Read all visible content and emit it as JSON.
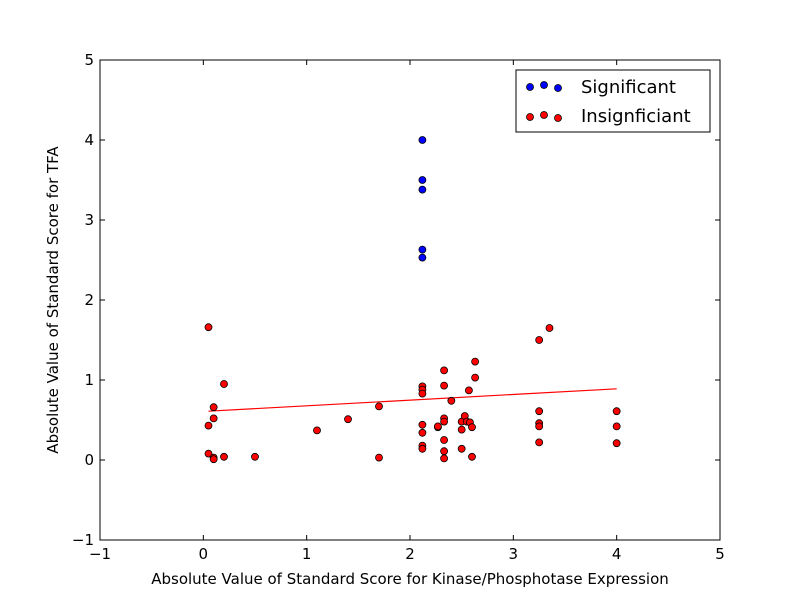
{
  "chart_data": {
    "type": "scatter",
    "title": "",
    "xlabel": "Absolute Value of Standard Score for Kinase/Phosphotase Expression",
    "ylabel": "Absolute Value of Standard Score for TFA",
    "xlim": [
      -1,
      5
    ],
    "ylim": [
      -1,
      5
    ],
    "xticks": [
      -1,
      0,
      1,
      2,
      3,
      4,
      5
    ],
    "yticks": [
      -1,
      0,
      1,
      2,
      3,
      4,
      5
    ],
    "xtick_labels": [
      "−1",
      "0",
      "1",
      "2",
      "3",
      "4",
      "5"
    ],
    "ytick_labels": [
      "−1",
      "0",
      "1",
      "2",
      "3",
      "4",
      "5"
    ],
    "grid": false,
    "legend_position": "top-right",
    "series": [
      {
        "name": "Significant",
        "color": "#0000ff",
        "points": [
          [
            2.12,
            4.0
          ],
          [
            2.12,
            3.5
          ],
          [
            2.12,
            3.38
          ],
          [
            2.12,
            2.63
          ],
          [
            2.12,
            2.53
          ]
        ]
      },
      {
        "name": "Insignficiant",
        "color": "#ff0000",
        "points": [
          [
            0.05,
            1.66
          ],
          [
            0.2,
            0.95
          ],
          [
            0.1,
            0.66
          ],
          [
            0.1,
            0.52
          ],
          [
            0.05,
            0.43
          ],
          [
            0.05,
            0.08
          ],
          [
            0.1,
            0.03
          ],
          [
            0.1,
            0.01
          ],
          [
            0.2,
            0.04
          ],
          [
            0.5,
            0.04
          ],
          [
            1.1,
            0.37
          ],
          [
            1.4,
            0.51
          ],
          [
            1.7,
            0.67
          ],
          [
            1.7,
            0.03
          ],
          [
            2.12,
            0.92
          ],
          [
            2.12,
            0.88
          ],
          [
            2.12,
            0.83
          ],
          [
            2.12,
            0.44
          ],
          [
            2.12,
            0.34
          ],
          [
            2.12,
            0.18
          ],
          [
            2.12,
            0.14
          ],
          [
            2.27,
            0.41
          ],
          [
            2.27,
            0.42
          ],
          [
            2.33,
            1.12
          ],
          [
            2.33,
            0.93
          ],
          [
            2.33,
            0.52
          ],
          [
            2.33,
            0.48
          ],
          [
            2.33,
            0.25
          ],
          [
            2.33,
            0.11
          ],
          [
            2.33,
            0.02
          ],
          [
            2.4,
            0.74
          ],
          [
            2.5,
            0.48
          ],
          [
            2.5,
            0.38
          ],
          [
            2.5,
            0.14
          ],
          [
            2.53,
            0.55
          ],
          [
            2.55,
            0.48
          ],
          [
            2.57,
            0.87
          ],
          [
            2.58,
            0.47
          ],
          [
            2.6,
            0.41
          ],
          [
            2.6,
            0.04
          ],
          [
            2.63,
            1.23
          ],
          [
            2.63,
            1.03
          ],
          [
            3.25,
            1.5
          ],
          [
            3.25,
            0.61
          ],
          [
            3.25,
            0.46
          ],
          [
            3.25,
            0.42
          ],
          [
            3.25,
            0.22
          ],
          [
            3.35,
            1.65
          ],
          [
            4.0,
            0.61
          ],
          [
            4.0,
            0.42
          ],
          [
            4.0,
            0.21
          ]
        ]
      }
    ],
    "trendline": {
      "color": "#ff0000",
      "points": [
        [
          0.05,
          0.61
        ],
        [
          4.0,
          0.89
        ]
      ]
    }
  }
}
